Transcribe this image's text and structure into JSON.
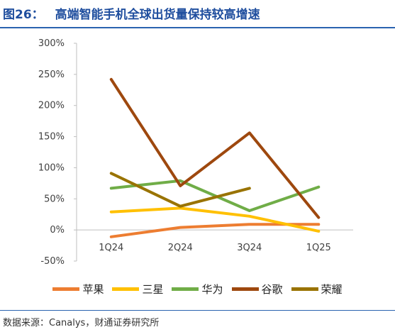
{
  "header": {
    "figure_number": "图26：",
    "title": "高端智能手机全球出货量保持较高增速"
  },
  "source": "数据来源：Canalys，财通证券研究所",
  "chart_data": {
    "type": "line",
    "title": "高端智能手机全球出货量保持较高增速",
    "xlabel": "",
    "ylabel": "",
    "categories": [
      "1Q24",
      "2Q24",
      "3Q24",
      "1Q25"
    ],
    "ylim": [
      -0.5,
      3.0
    ],
    "y_ticks": [
      "-50%",
      "0%",
      "50%",
      "100%",
      "150%",
      "200%",
      "250%",
      "300%"
    ],
    "grid": false,
    "legend_position": "bottom",
    "series": [
      {
        "name": "苹果",
        "color": "#ed7d31",
        "values": [
          -0.11,
          0.04,
          0.09,
          0.09
        ]
      },
      {
        "name": "三星",
        "color": "#ffc000",
        "values": [
          0.29,
          0.35,
          0.22,
          -0.02
        ]
      },
      {
        "name": "华为",
        "color": "#70ad47",
        "values": [
          0.67,
          0.79,
          0.31,
          0.69
        ]
      },
      {
        "name": "谷歌",
        "color": "#9e480e",
        "values": [
          2.42,
          0.71,
          1.56,
          0.2
        ]
      },
      {
        "name": "荣耀",
        "color": "#997300",
        "values": [
          0.91,
          0.38,
          0.67,
          null
        ]
      }
    ]
  }
}
